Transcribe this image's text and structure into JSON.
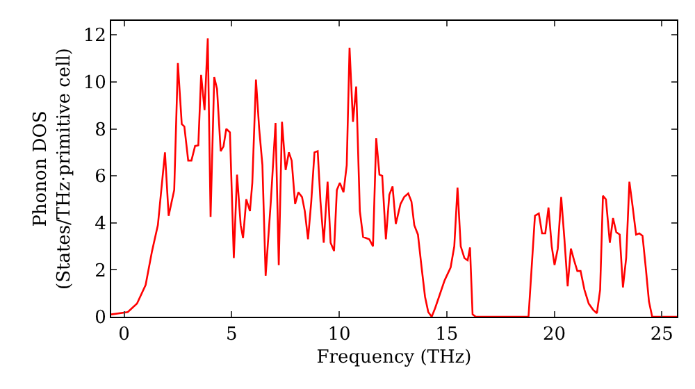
{
  "chart_data": {
    "type": "line",
    "xlabel": "Frequency (THz)",
    "ylabel": "Phonon DOS\n(States/THz·primitive cell)",
    "xlim": [
      -0.6,
      25.7
    ],
    "ylim": [
      0,
      12.6
    ],
    "xticks": [
      0,
      5,
      10,
      15,
      20,
      25
    ],
    "yticks": [
      0,
      2,
      4,
      6,
      8,
      10,
      12
    ],
    "grid": false,
    "marker": "none",
    "line_style": "solid",
    "series": [
      {
        "color": "#ff0000",
        "x": [
          -0.6,
          0.17,
          0.6,
          1.0,
          1.3,
          1.57,
          1.9,
          2.07,
          2.33,
          2.5,
          2.68,
          2.8,
          2.98,
          3.13,
          3.3,
          3.45,
          3.58,
          3.74,
          3.89,
          4.02,
          4.19,
          4.32,
          4.49,
          4.62,
          4.75,
          4.92,
          5.1,
          5.25,
          5.42,
          5.53,
          5.68,
          5.85,
          5.96,
          6.13,
          6.28,
          6.43,
          6.58,
          6.82,
          7.04,
          7.19,
          7.34,
          7.51,
          7.66,
          7.79,
          7.95,
          8.1,
          8.27,
          8.4,
          8.55,
          8.7,
          8.85,
          9.0,
          9.13,
          9.28,
          9.46,
          9.6,
          9.76,
          9.89,
          10.03,
          10.2,
          10.35,
          10.48,
          10.64,
          10.79,
          10.96,
          11.11,
          11.4,
          11.57,
          11.72,
          11.87,
          12.0,
          12.17,
          12.33,
          12.48,
          12.63,
          12.85,
          13.02,
          13.21,
          13.36,
          13.49,
          13.66,
          13.83,
          13.99,
          14.14,
          14.3,
          14.46,
          14.64,
          14.9,
          15.18,
          15.35,
          15.5,
          15.65,
          15.82,
          15.97,
          16.08,
          16.2,
          16.35,
          18.8,
          19.1,
          19.28,
          19.43,
          19.58,
          19.73,
          19.88,
          20.01,
          20.16,
          20.32,
          20.47,
          20.62,
          20.77,
          20.92,
          21.07,
          21.22,
          21.4,
          21.6,
          21.8,
          21.98,
          22.13,
          22.26,
          22.4,
          22.58,
          22.73,
          22.88,
          23.04,
          23.19,
          23.34,
          23.49,
          23.64,
          23.8,
          23.95,
          24.1,
          24.25,
          24.4,
          24.55,
          25.7
        ],
        "values": [
          0.1,
          0.2,
          0.56,
          1.35,
          2.8,
          3.9,
          7.0,
          4.3,
          5.4,
          10.8,
          8.2,
          8.1,
          6.65,
          6.65,
          7.27,
          7.3,
          10.3,
          8.8,
          11.85,
          4.25,
          10.2,
          9.7,
          7.05,
          7.25,
          8.0,
          7.85,
          2.5,
          6.05,
          3.9,
          3.35,
          5.0,
          4.5,
          5.7,
          10.1,
          8.0,
          6.45,
          1.75,
          4.9,
          8.25,
          2.2,
          8.3,
          6.25,
          7.0,
          6.65,
          4.8,
          5.3,
          5.1,
          4.5,
          3.3,
          4.9,
          7.0,
          7.05,
          4.9,
          3.15,
          5.75,
          3.15,
          2.8,
          5.4,
          5.7,
          5.3,
          6.45,
          11.45,
          8.3,
          9.8,
          4.5,
          3.4,
          3.3,
          3.0,
          7.6,
          6.05,
          6.0,
          3.3,
          5.2,
          5.55,
          3.95,
          4.8,
          5.1,
          5.25,
          4.9,
          3.9,
          3.5,
          2.1,
          0.85,
          0.2,
          0,
          0.37,
          0.85,
          1.55,
          2.1,
          3.0,
          5.5,
          3.0,
          2.5,
          2.4,
          2.95,
          0.1,
          0,
          0,
          4.3,
          4.4,
          3.55,
          3.55,
          4.65,
          3.0,
          2.2,
          2.9,
          5.1,
          3.3,
          1.3,
          2.9,
          2.4,
          1.95,
          1.95,
          1.15,
          0.56,
          0.3,
          0.15,
          1.15,
          5.15,
          5.0,
          3.15,
          4.2,
          3.6,
          3.5,
          1.25,
          2.5,
          5.75,
          4.7,
          3.5,
          3.55,
          3.45,
          2.1,
          0.65,
          0,
          0
        ]
      }
    ]
  }
}
